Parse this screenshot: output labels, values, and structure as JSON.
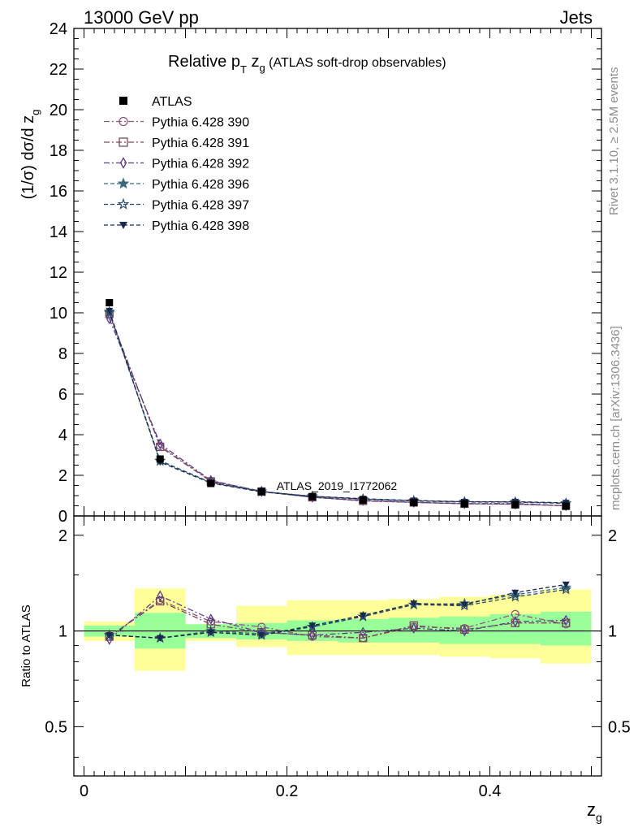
{
  "header": {
    "left": "13000 GeV pp",
    "right": "Jets"
  },
  "title": {
    "main": "Relative p",
    "sub_T": "T",
    "mid": " z",
    "sub_g": "g",
    "tail": " (ATLAS soft-drop observables)"
  },
  "ylabel_main": {
    "text": "(1/σ) dσ/d z",
    "sub": "g"
  },
  "ylabel_ratio": "Ratio to ATLAS",
  "xlabel": {
    "text": "z",
    "sub": "g"
  },
  "side_labels": {
    "rivet": "Rivet 3.1.10, ≥ 2.5M events",
    "mcplots": "mcplots.cern.ch [arXiv:1306.3436]"
  },
  "watermark": "ATLAS_2019_I1772062",
  "colors": {
    "data": "#000000",
    "band_inner": "#99ff99",
    "band_outer": "#ffff99",
    "s390": "#8b5a83",
    "s391": "#7a4a5a",
    "s392": "#5a3a8a",
    "s396": "#3a6a7a",
    "s397": "#2a4a6a",
    "s398": "#1a2a4a"
  },
  "chart_data": {
    "type": "line",
    "title": "Relative pT zg (ATLAS soft-drop observables)",
    "xlabel": "zg",
    "ylabel": "(1/σ) dσ/d zg",
    "xlim": [
      -0.01,
      0.51
    ],
    "ylim": [
      0,
      24
    ],
    "ratio_ylabel": "Ratio to ATLAS",
    "ratio_ylim": [
      0.35,
      2.3
    ],
    "x_ticks": [
      "0",
      "0.2",
      "0.4"
    ],
    "y_ticks": [
      "0",
      "2",
      "4",
      "6",
      "8",
      "10",
      "12",
      "14",
      "16",
      "18",
      "20",
      "22",
      "24"
    ],
    "ratio_ticks": [
      "0.5",
      "1",
      "2"
    ],
    "legend_position": "top-left",
    "x": [
      0.025,
      0.075,
      0.125,
      0.175,
      0.225,
      0.275,
      0.325,
      0.375,
      0.425,
      0.475
    ],
    "bin_edges": [
      0.0,
      0.05,
      0.1,
      0.15,
      0.2,
      0.25,
      0.3,
      0.35,
      0.4,
      0.45,
      0.5
    ],
    "data": {
      "name": "ATLAS",
      "values": [
        10.5,
        2.8,
        1.6,
        1.2,
        0.95,
        0.78,
        0.65,
        0.6,
        0.55,
        0.48
      ],
      "band_inner": [
        [
          0.96,
          1.04
        ],
        [
          0.88,
          1.14
        ],
        [
          0.95,
          1.05
        ],
        [
          0.94,
          1.06
        ],
        [
          0.93,
          1.08
        ],
        [
          0.92,
          1.09
        ],
        [
          0.92,
          1.1
        ],
        [
          0.91,
          1.11
        ],
        [
          0.91,
          1.13
        ],
        [
          0.9,
          1.15
        ]
      ],
      "band_outer": [
        [
          0.93,
          1.07
        ],
        [
          0.75,
          1.36
        ],
        [
          0.93,
          1.05
        ],
        [
          0.89,
          1.2
        ],
        [
          0.84,
          1.25
        ],
        [
          0.84,
          1.25
        ],
        [
          0.84,
          1.26
        ],
        [
          0.83,
          1.28
        ],
        [
          0.82,
          1.3
        ],
        [
          0.79,
          1.35
        ]
      ]
    },
    "series": [
      {
        "name": "Pythia 6.428 390",
        "marker": "circle",
        "dash": "dashdot",
        "values": [
          9.9,
          3.45,
          1.72,
          1.22,
          0.92,
          0.74,
          0.67,
          0.61,
          0.62,
          0.5
        ],
        "ratio": [
          0.96,
          1.25,
          1.07,
          1.03,
          0.96,
          0.95,
          1.03,
          1.02,
          1.13,
          1.05
        ]
      },
      {
        "name": "Pythia 6.428 391",
        "marker": "square",
        "dash": "dashdot",
        "values": [
          9.95,
          3.4,
          1.7,
          1.2,
          0.92,
          0.74,
          0.67,
          0.6,
          0.58,
          0.5
        ],
        "ratio": [
          0.96,
          1.24,
          1.05,
          0.99,
          0.97,
          0.95,
          1.04,
          1.01,
          1.06,
          1.06
        ]
      },
      {
        "name": "Pythia 6.428 392",
        "marker": "diamond",
        "dash": "dashdot",
        "values": [
          9.7,
          3.55,
          1.75,
          1.2,
          0.92,
          0.76,
          0.67,
          0.6,
          0.58,
          0.5
        ],
        "ratio": [
          0.94,
          1.29,
          1.09,
          0.99,
          0.97,
          0.99,
          1.02,
          1.0,
          1.07,
          1.08
        ]
      },
      {
        "name": "Pythia 6.428 396",
        "marker": "star",
        "dash": "dashed",
        "values": [
          10.0,
          2.7,
          1.65,
          1.2,
          0.97,
          0.83,
          0.75,
          0.7,
          0.69,
          0.63
        ],
        "ratio": [
          0.97,
          0.95,
          1.0,
          0.98,
          1.03,
          1.11,
          1.21,
          1.22,
          1.3,
          1.37
        ]
      },
      {
        "name": "Pythia 6.428 397",
        "marker": "openstar",
        "dash": "dashed",
        "values": [
          10.05,
          2.72,
          1.65,
          1.2,
          0.96,
          0.83,
          0.74,
          0.68,
          0.68,
          0.62
        ],
        "ratio": [
          0.97,
          0.95,
          0.99,
          0.97,
          1.03,
          1.11,
          1.21,
          1.2,
          1.28,
          1.35
        ]
      },
      {
        "name": "Pythia 6.428 398",
        "marker": "triangle-down",
        "dash": "dashed",
        "values": [
          10.1,
          2.65,
          1.62,
          1.18,
          0.97,
          0.85,
          0.76,
          0.7,
          0.7,
          0.65
        ],
        "ratio": [
          0.97,
          0.95,
          0.99,
          0.97,
          1.04,
          1.12,
          1.22,
          1.21,
          1.32,
          1.4
        ]
      }
    ]
  }
}
